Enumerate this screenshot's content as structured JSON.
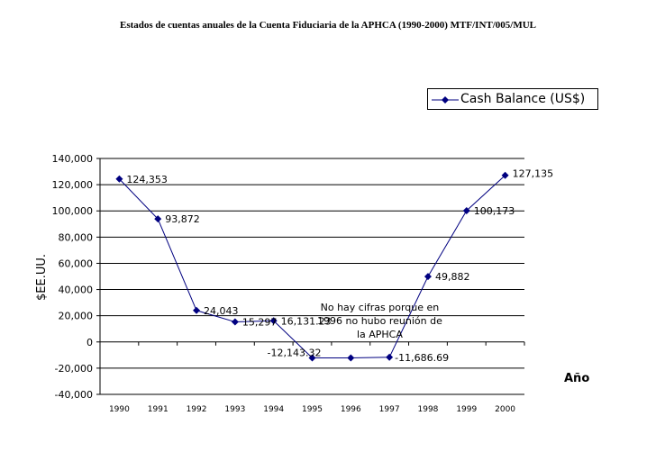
{
  "chart_data": {
    "type": "line",
    "title": "Estados de cuentas anuales de la Cuenta Fiduciaria de la APHCA (1990-2000) MTF/INT/005/MUL",
    "xlabel": "Año",
    "ylabel": "$EE.UU.",
    "ylim": [
      -40000,
      140000
    ],
    "yticks": [
      "-40,000",
      "-20,000",
      "0",
      "20,000",
      "40,000",
      "60,000",
      "80,000",
      "100,000",
      "120,000",
      "140,000"
    ],
    "ytick_values": [
      -40000,
      -20000,
      0,
      20000,
      40000,
      60000,
      80000,
      100000,
      120000,
      140000
    ],
    "categories": [
      "1990",
      "1991",
      "1992",
      "1993",
      "1994",
      "1995",
      "1996",
      "1997",
      "1998",
      "1999",
      "2000"
    ],
    "series": [
      {
        "name": "Cash Balance (US$)",
        "color": "#000080",
        "values": [
          124353,
          93872,
          24043,
          15297,
          16131.23,
          -12143.32,
          -12143.32,
          -11686.69,
          49882,
          100173,
          127135
        ],
        "labels": [
          "124,353",
          "93,872",
          "24,043",
          "15,297",
          "16,131.23",
          "-12,143.32",
          "",
          "-11,686.69",
          "49,882",
          "100,173",
          "127,135"
        ]
      }
    ],
    "annotation": "No hay cifras porque en 1996 no hubo reunión de la APHCA",
    "grid": true,
    "legend": "top-right"
  }
}
